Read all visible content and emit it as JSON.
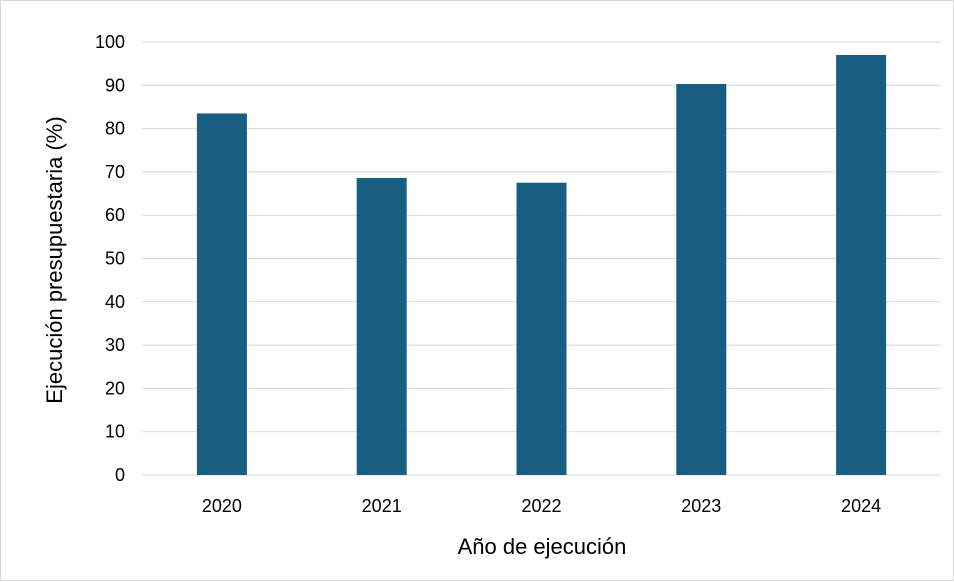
{
  "chart_data": {
    "type": "bar",
    "categories": [
      "2020",
      "2021",
      "2022",
      "2023",
      "2024"
    ],
    "values": [
      83.5,
      68.6,
      67.5,
      90.3,
      97.0
    ],
    "xlabel": "Año de ejecución",
    "ylabel": "Ejecución presupuestaria (%)",
    "ylim": [
      0,
      100
    ],
    "yticks": [
      "0",
      "10",
      "20",
      "30",
      "40",
      "50",
      "60",
      "70",
      "80",
      "90",
      "100"
    ],
    "grid": "horizontal",
    "legend": "none",
    "bar_color": "#175E81",
    "grid_color": "#D9D9D9"
  }
}
